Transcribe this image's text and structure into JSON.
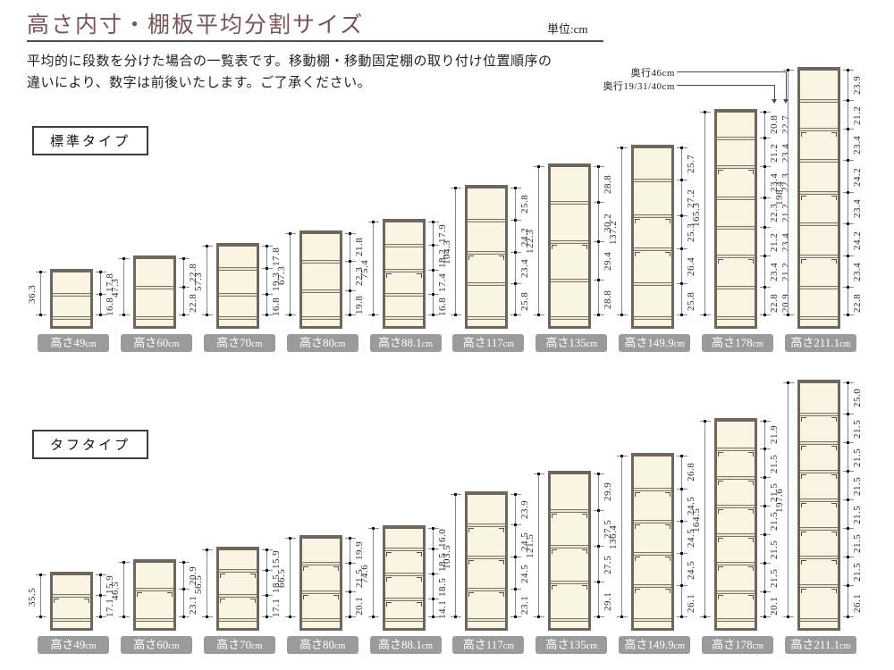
{
  "header": {
    "title": "高さ内寸・棚板平均分割サイズ",
    "unit_label": "単位:cm",
    "description_lines": [
      "平均的に段数を分けた場合の一覧表です。移動棚・移動固定棚の取り付け位置順序の",
      "違いにより、数字は前後いたします。ご了承ください。"
    ]
  },
  "colors": {
    "title_accent": "#7b515a",
    "rule": "#4f4f4f",
    "cabinet_frame": "#6f675d",
    "cabinet_interior": "#faf4e3",
    "badge_background": "#9b9b9b",
    "badge_text": "#ffffff",
    "dimension_line": "#8a8a8a",
    "dimension_text": "#2e2e2e"
  },
  "rows": [
    {
      "type_label": "標準タイプ",
      "shelves": [
        {
          "badge": {
            "prefix": "高さ",
            "value": "49",
            "unit": "cm"
          },
          "inner_total": "36.3",
          "sections_bottom_to_top": [
            "16.8",
            "17.8"
          ],
          "movable_marks": []
        },
        {
          "badge": {
            "prefix": "高さ",
            "value": "60",
            "unit": "cm"
          },
          "inner_total": "47.3",
          "sections_bottom_to_top": [
            "22.8",
            "22.8"
          ],
          "movable_marks": []
        },
        {
          "badge": {
            "prefix": "高さ",
            "value": "70",
            "unit": "cm"
          },
          "inner_total": "57.3",
          "sections_bottom_to_top": [
            "16.8",
            "19.3",
            "17.8"
          ],
          "movable_marks": []
        },
        {
          "badge": {
            "prefix": "高さ",
            "value": "80",
            "unit": "cm"
          },
          "inner_total": "67.3",
          "sections_bottom_to_top": [
            "19.8",
            "22.3",
            "21.8"
          ],
          "movable_marks": []
        },
        {
          "badge": {
            "prefix": "高さ",
            "value": "88.1",
            "unit": "cm"
          },
          "inner_total": "75.4",
          "sections_bottom_to_top": [
            "16.8",
            "17.4",
            "18.2",
            "17.9"
          ],
          "movable_marks": [
            2
          ]
        },
        {
          "badge": {
            "prefix": "高さ",
            "value": "117",
            "unit": "cm"
          },
          "inner_total": "104.3",
          "sections_bottom_to_top": [
            "25.8",
            "23.4",
            "24.2",
            "25.8"
          ],
          "movable_marks": [
            2
          ]
        },
        {
          "badge": {
            "prefix": "高さ",
            "value": "135",
            "unit": "cm"
          },
          "inner_total": "122.3",
          "sections_bottom_to_top": [
            "28.8",
            "29.4",
            "30.2",
            "28.8"
          ],
          "movable_marks": [
            2
          ]
        },
        {
          "badge": {
            "prefix": "高さ",
            "value": "149.9",
            "unit": "cm"
          },
          "inner_total": "137.2",
          "sections_bottom_to_top": [
            "25.8",
            "26.4",
            "25.3",
            "27.2",
            "25.7"
          ],
          "movable_marks": [
            2,
            3
          ]
        },
        {
          "badge": {
            "prefix": "高さ",
            "value": "178",
            "unit": "cm"
          },
          "inner_total": "165.3",
          "sections_bottom_to_top": [
            "22.8",
            "23.4",
            "21.2",
            "22.3",
            "23.4",
            "21.2",
            "20.8"
          ],
          "alt_sections_bottom_to_top": [
            "20.9",
            "21.2",
            "23.4",
            "21.2",
            "22.3",
            "23.4",
            "22.7"
          ],
          "movable_marks": [
            2,
            5
          ],
          "depth_notes": [
            {
              "label": "奥行46cm",
              "applies_to_column": "alt"
            },
            {
              "label": "奥行19/31/40cm",
              "applies_to_column": "main"
            }
          ]
        },
        {
          "badge": {
            "prefix": "高さ",
            "value": "211.1",
            "unit": "cm"
          },
          "inner_total": "198.4",
          "sections_bottom_to_top": [
            "22.8",
            "23.4",
            "24.2",
            "23.4",
            "24.2",
            "23.4",
            "21.2",
            "23.9"
          ],
          "movable_marks": [
            2,
            4,
            6
          ]
        }
      ]
    },
    {
      "type_label": "タフタイプ",
      "shelves": [
        {
          "badge": {
            "prefix": "高さ",
            "value": "49",
            "unit": "cm"
          },
          "inner_total": "35.5",
          "sections_bottom_to_top": [
            "17.1",
            "15.9"
          ],
          "movable_marks": [
            1
          ]
        },
        {
          "badge": {
            "prefix": "高さ",
            "value": "60",
            "unit": "cm"
          },
          "inner_total": "46.5",
          "sections_bottom_to_top": [
            "23.1",
            "20.9"
          ],
          "movable_marks": [
            1
          ]
        },
        {
          "badge": {
            "prefix": "高さ",
            "value": "70",
            "unit": "cm"
          },
          "inner_total": "56.5",
          "sections_bottom_to_top": [
            "17.1",
            "18.5",
            "15.9"
          ],
          "movable_marks": [
            1,
            2
          ]
        },
        {
          "badge": {
            "prefix": "高さ",
            "value": "80",
            "unit": "cm"
          },
          "inner_total": "66.5",
          "sections_bottom_to_top": [
            "20.1",
            "21.5",
            "19.9"
          ],
          "movable_marks": [
            1,
            2
          ]
        },
        {
          "badge": {
            "prefix": "高さ",
            "value": "88.1",
            "unit": "cm"
          },
          "inner_total": "74.6",
          "sections_bottom_to_top": [
            "14.1",
            "18.5",
            "18.5",
            "16.0"
          ],
          "movable_marks": [
            1,
            2,
            3
          ]
        },
        {
          "badge": {
            "prefix": "高さ",
            "value": "117",
            "unit": "cm"
          },
          "inner_total": "103.5",
          "sections_bottom_to_top": [
            "23.1",
            "24.5",
            "24.5",
            "23.9"
          ],
          "movable_marks": [
            1,
            2,
            3
          ]
        },
        {
          "badge": {
            "prefix": "高さ",
            "value": "135",
            "unit": "cm"
          },
          "inner_total": "121.5",
          "sections_bottom_to_top": [
            "29.1",
            "27.5",
            "27.5",
            "29.9"
          ],
          "movable_marks": [
            1,
            2,
            3
          ]
        },
        {
          "badge": {
            "prefix": "高さ",
            "value": "149.9",
            "unit": "cm"
          },
          "inner_total": "136.4",
          "sections_bottom_to_top": [
            "26.1",
            "24.5",
            "24.5",
            "24.5",
            "26.8"
          ],
          "movable_marks": [
            1,
            2,
            3,
            4
          ]
        },
        {
          "badge": {
            "prefix": "高さ",
            "value": "178",
            "unit": "cm"
          },
          "inner_total": "164.5",
          "sections_bottom_to_top": [
            "20.1",
            "21.5",
            "21.5",
            "21.5",
            "21.5",
            "21.5",
            "21.9"
          ],
          "movable_marks": [
            1,
            2,
            3,
            4,
            5,
            6
          ]
        },
        {
          "badge": {
            "prefix": "高さ",
            "value": "211.1",
            "unit": "cm"
          },
          "inner_total": "197.6",
          "sections_bottom_to_top": [
            "26.1",
            "21.5",
            "21.5",
            "21.5",
            "21.5",
            "21.5",
            "21.5",
            "25.0"
          ],
          "movable_marks": [
            1,
            2,
            3,
            4,
            5,
            6,
            7
          ]
        }
      ]
    }
  ]
}
